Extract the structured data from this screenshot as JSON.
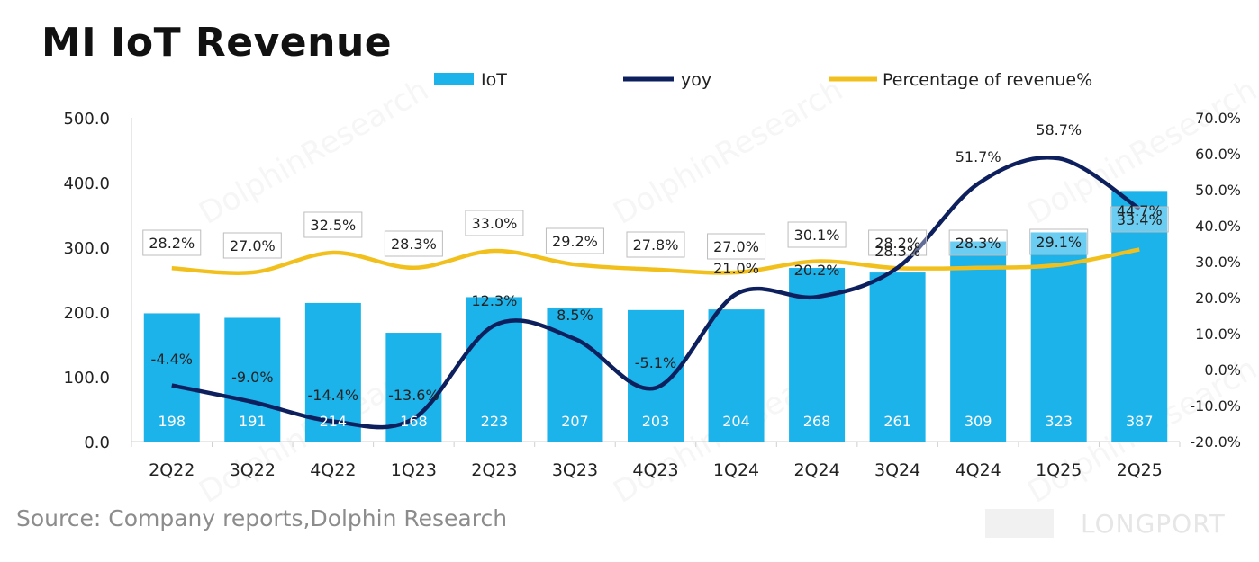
{
  "title": "MI IoT Revenue",
  "source": "Source: Company reports,Dolphin Research",
  "watermark": {
    "text": "DolphinResearch",
    "brand": "LONGPORT"
  },
  "colors": {
    "iot": "#1cb2ea",
    "yoy": "#0d1f5c",
    "pct": "#f2c01d"
  },
  "chart_data": {
    "type": "bar",
    "categories": [
      "2Q22",
      "3Q22",
      "4Q22",
      "1Q23",
      "2Q23",
      "3Q23",
      "4Q23",
      "1Q24",
      "2Q24",
      "3Q24",
      "4Q24",
      "1Q25",
      "2Q25"
    ],
    "y_left": {
      "range": [
        0,
        500
      ],
      "ticks": [
        "0.0",
        "100.0",
        "200.0",
        "300.0",
        "400.0",
        "500.0"
      ]
    },
    "y_right": {
      "range": [
        -20,
        70
      ],
      "ticks": [
        "-20.0%",
        "-10.0%",
        "0.0%",
        "10.0%",
        "20.0%",
        "30.0%",
        "40.0%",
        "50.0%",
        "60.0%",
        "70.0%"
      ]
    },
    "legend": {
      "position": "top",
      "items": [
        "IoT",
        "yoy",
        "Percentage of revenue%"
      ]
    },
    "series": [
      {
        "name": "IoT",
        "type": "bar",
        "axis": "left",
        "values": [
          198,
          191,
          214,
          168,
          223,
          207,
          203,
          204,
          268,
          261,
          309,
          323,
          387
        ],
        "labels": [
          "198",
          "191",
          "214",
          "168",
          "223",
          "207",
          "203",
          "204",
          "268",
          "261",
          "309",
          "323",
          "387"
        ]
      },
      {
        "name": "yoy",
        "type": "line",
        "axis": "right",
        "values": [
          -4.4,
          -9.0,
          -14.4,
          -13.6,
          12.3,
          8.5,
          -5.1,
          21.0,
          20.2,
          28.3,
          51.7,
          58.7,
          44.7
        ],
        "labels": [
          "-4.4%",
          "-9.0%",
          "-14.4%",
          "-13.6%",
          "12.3%",
          "8.5%",
          "-5.1%",
          "21.0%",
          "20.2%",
          "28.3%",
          "51.7%",
          "58.7%",
          "44.7%"
        ]
      },
      {
        "name": "Percentage of revenue%",
        "type": "line",
        "axis": "right",
        "values": [
          28.2,
          27.0,
          32.5,
          28.3,
          33.0,
          29.2,
          27.8,
          27.0,
          30.1,
          28.2,
          28.3,
          29.1,
          33.4
        ],
        "labels": [
          "28.2%",
          "27.0%",
          "32.5%",
          "28.3%",
          "33.0%",
          "29.2%",
          "27.8%",
          "27.0%",
          "30.1%",
          "28.2%",
          "28.3%",
          "29.1%",
          "33.4%"
        ]
      }
    ]
  }
}
